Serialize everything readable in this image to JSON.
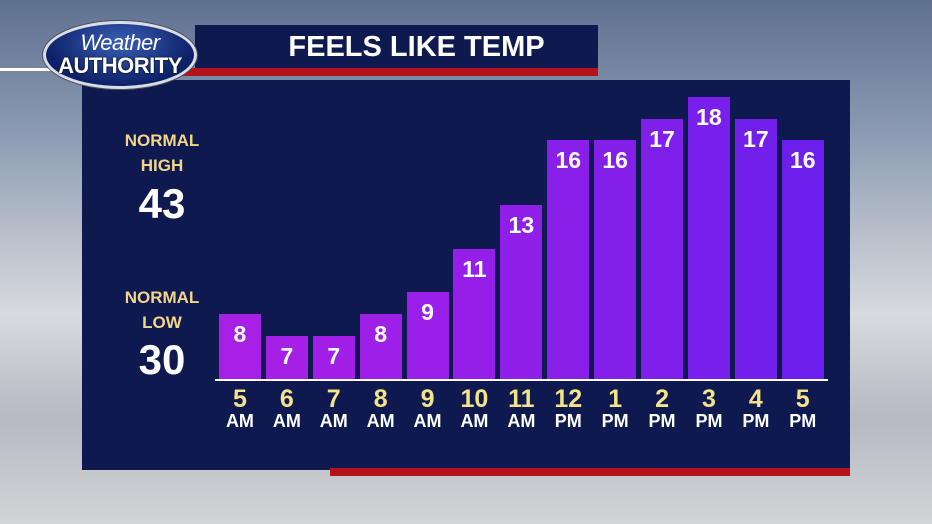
{
  "logo": {
    "top": "Weather",
    "bottom": "AUTHORITY"
  },
  "normals": [
    {
      "label": "NORMAL\nHIGH",
      "value": 43
    },
    {
      "label": "NORMAL\nLOW",
      "value": 30
    }
  ],
  "chart_data": {
    "type": "bar",
    "title": "FEELS LIKE TEMP",
    "categories": [
      "5\nAM",
      "6\nAM",
      "7\nAM",
      "8\nAM",
      "9\nAM",
      "10\nAM",
      "11\nAM",
      "12\nPM",
      "1\nPM",
      "2\nPM",
      "3\nPM",
      "4\nPM",
      "5\nPM"
    ],
    "values": [
      8,
      7,
      7,
      8,
      9,
      11,
      13,
      16,
      16,
      17,
      18,
      17,
      16
    ],
    "colors": [
      "#a81fe6",
      "#a51fe6",
      "#a21fe7",
      "#9e1fe7",
      "#9a1fe8",
      "#951fe8",
      "#901fe9",
      "#8a1fe9",
      "#841fea",
      "#7e1fea",
      "#781feb",
      "#721feb",
      "#6c1fec"
    ],
    "ylim": [
      5,
      18
    ]
  }
}
